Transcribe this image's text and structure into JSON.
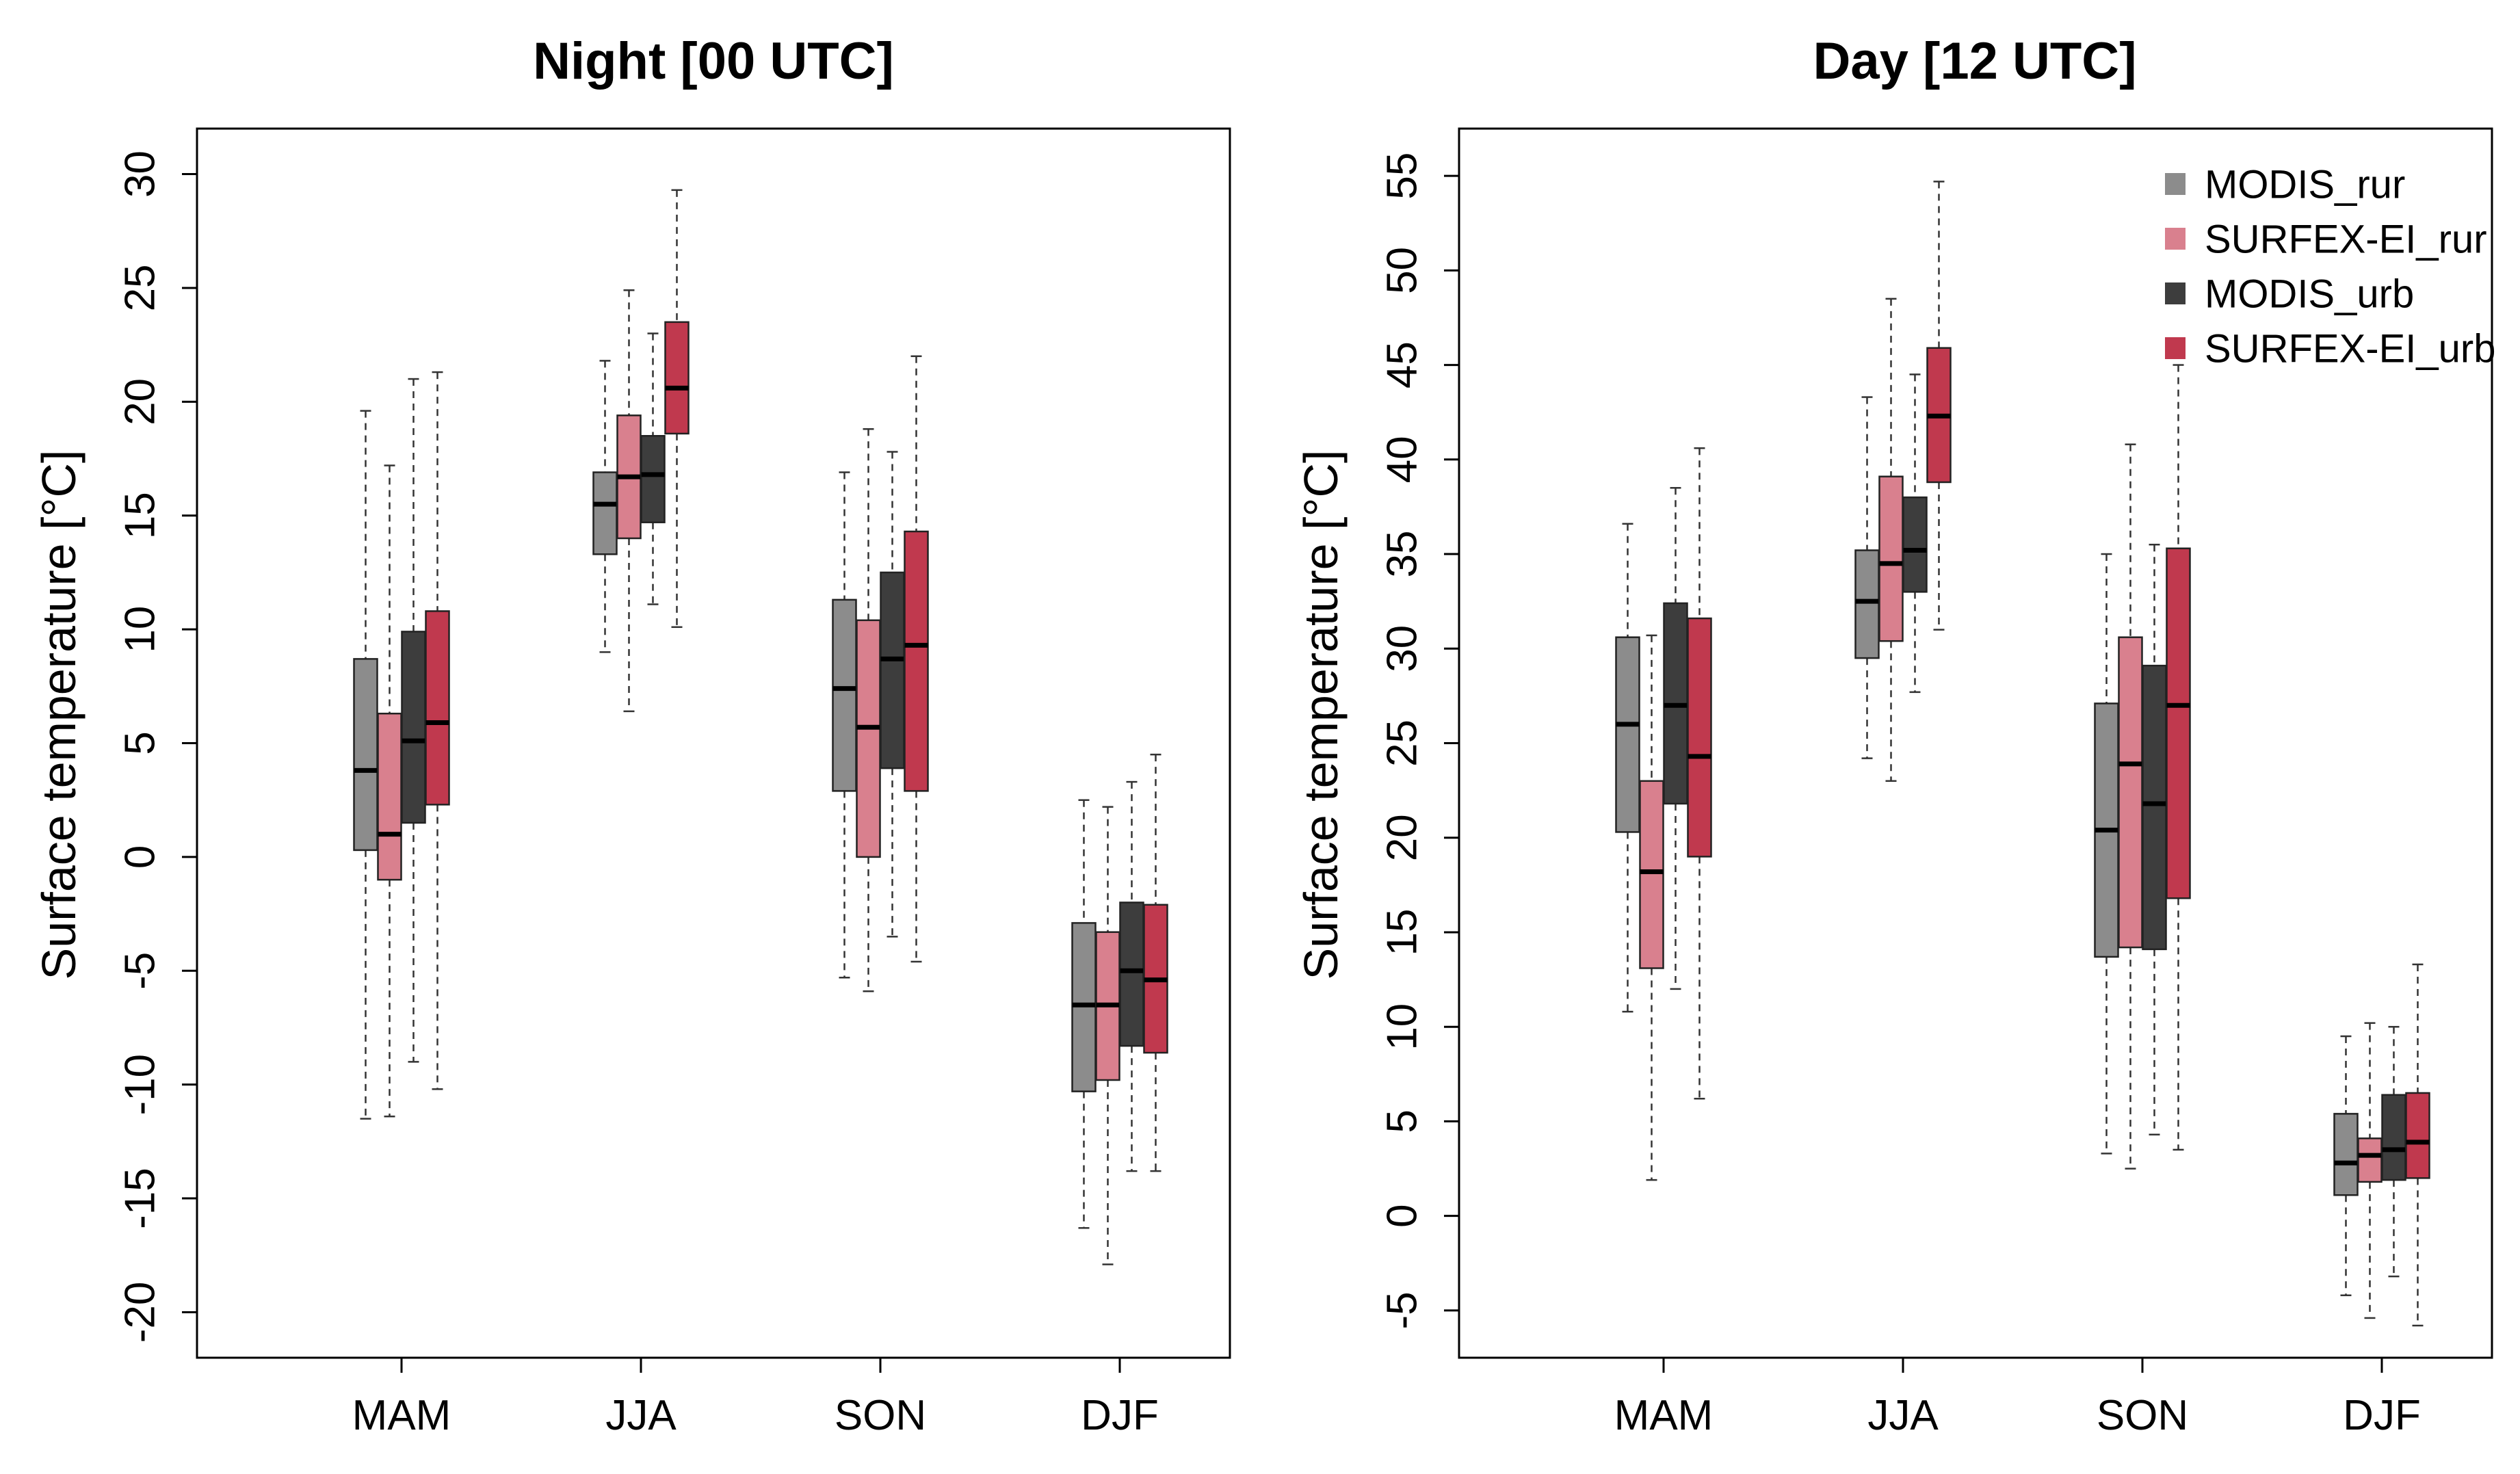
{
  "chart_data": [
    {
      "type": "boxplot",
      "title": "Night [00 UTC]",
      "xlabel": "",
      "ylabel": "Surface temperature [°C]",
      "ylim": [
        -22,
        32
      ],
      "yticks": [
        -20,
        -15,
        -10,
        -5,
        0,
        5,
        10,
        15,
        20,
        25,
        30
      ],
      "categories": [
        "MAM",
        "JJA",
        "SON",
        "DJF"
      ],
      "series": [
        {
          "name": "MODIS_rur",
          "color": "#8c8c8c",
          "boxes": [
            {
              "min": -11.5,
              "q1": 0.3,
              "median": 3.8,
              "q3": 8.7,
              "max": 19.6
            },
            {
              "min": 9.0,
              "q1": 13.3,
              "median": 15.5,
              "q3": 16.9,
              "max": 21.8
            },
            {
              "min": -5.3,
              "q1": 2.9,
              "median": 7.4,
              "q3": 11.3,
              "max": 16.9
            },
            {
              "min": -16.3,
              "q1": -10.3,
              "median": -6.5,
              "q3": -2.9,
              "max": 2.5
            }
          ]
        },
        {
          "name": "SURFEX-EI_rur",
          "color": "#d9808e",
          "boxes": [
            {
              "min": -11.4,
              "q1": -1.0,
              "median": 1.0,
              "q3": 6.3,
              "max": 17.2
            },
            {
              "min": 6.4,
              "q1": 14.0,
              "median": 16.7,
              "q3": 19.4,
              "max": 24.9
            },
            {
              "min": -5.9,
              "q1": 0.0,
              "median": 5.7,
              "q3": 10.4,
              "max": 18.8
            },
            {
              "min": -17.9,
              "q1": -9.8,
              "median": -6.5,
              "q3": -3.3,
              "max": 2.2
            }
          ]
        },
        {
          "name": "MODIS_urb",
          "color": "#3d3d3d",
          "boxes": [
            {
              "min": -9.0,
              "q1": 1.5,
              "median": 5.1,
              "q3": 9.9,
              "max": 21.0
            },
            {
              "min": 11.1,
              "q1": 14.7,
              "median": 16.8,
              "q3": 18.5,
              "max": 23.0
            },
            {
              "min": -3.5,
              "q1": 3.9,
              "median": 8.7,
              "q3": 12.5,
              "max": 17.8
            },
            {
              "min": -13.8,
              "q1": -8.3,
              "median": -5.0,
              "q3": -2.0,
              "max": 3.3
            }
          ]
        },
        {
          "name": "SURFEX-EI_urb",
          "color": "#c0394e",
          "boxes": [
            {
              "min": -10.2,
              "q1": 2.3,
              "median": 5.9,
              "q3": 10.8,
              "max": 21.3
            },
            {
              "min": 10.1,
              "q1": 18.6,
              "median": 20.6,
              "q3": 23.5,
              "max": 29.3
            },
            {
              "min": -4.6,
              "q1": 2.9,
              "median": 9.3,
              "q3": 14.3,
              "max": 22.0
            },
            {
              "min": -13.8,
              "q1": -8.6,
              "median": -5.4,
              "q3": -2.1,
              "max": 4.5
            }
          ]
        }
      ]
    },
    {
      "type": "boxplot",
      "title": "Day [12 UTC]",
      "xlabel": "",
      "ylabel": "Surface temperature [°C]",
      "ylim": [
        -7.5,
        57.5
      ],
      "yticks": [
        -5,
        0,
        5,
        10,
        15,
        20,
        25,
        30,
        35,
        40,
        45,
        50,
        55
      ],
      "categories": [
        "MAM",
        "JJA",
        "SON",
        "DJF"
      ],
      "legend": {
        "position": "top-right",
        "entries": [
          "MODIS_rur",
          "SURFEX-EI_rur",
          "MODIS_urb",
          "SURFEX-EI_urb"
        ]
      },
      "series": [
        {
          "name": "MODIS_rur",
          "color": "#8c8c8c",
          "boxes": [
            {
              "min": 10.8,
              "q1": 20.3,
              "median": 26.0,
              "q3": 30.6,
              "max": 36.6
            },
            {
              "min": 24.2,
              "q1": 29.5,
              "median": 32.5,
              "q3": 35.2,
              "max": 43.3
            },
            {
              "min": 3.3,
              "q1": 13.7,
              "median": 20.4,
              "q3": 27.1,
              "max": 35.0
            },
            {
              "min": -4.2,
              "q1": 1.1,
              "median": 2.8,
              "q3": 5.4,
              "max": 9.5
            }
          ]
        },
        {
          "name": "SURFEX-EI_rur",
          "color": "#d9808e",
          "boxes": [
            {
              "min": 1.9,
              "q1": 13.1,
              "median": 18.2,
              "q3": 23.0,
              "max": 30.7
            },
            {
              "min": 23.0,
              "q1": 30.4,
              "median": 34.5,
              "q3": 39.1,
              "max": 48.5
            },
            {
              "min": 2.5,
              "q1": 14.2,
              "median": 23.9,
              "q3": 30.6,
              "max": 40.8
            },
            {
              "min": -5.4,
              "q1": 1.8,
              "median": 3.2,
              "q3": 4.1,
              "max": 10.2
            }
          ]
        },
        {
          "name": "MODIS_urb",
          "color": "#3d3d3d",
          "boxes": [
            {
              "min": 12.0,
              "q1": 21.8,
              "median": 27.0,
              "q3": 32.4,
              "max": 38.5
            },
            {
              "min": 27.7,
              "q1": 33.0,
              "median": 35.2,
              "q3": 38.0,
              "max": 44.5
            },
            {
              "min": 4.3,
              "q1": 14.1,
              "median": 21.8,
              "q3": 29.1,
              "max": 35.5
            },
            {
              "min": -3.2,
              "q1": 1.9,
              "median": 3.5,
              "q3": 6.4,
              "max": 10.0
            }
          ]
        },
        {
          "name": "SURFEX-EI_urb",
          "color": "#c0394e",
          "boxes": [
            {
              "min": 6.2,
              "q1": 19.0,
              "median": 24.3,
              "q3": 31.6,
              "max": 40.6
            },
            {
              "min": 31.0,
              "q1": 38.8,
              "median": 42.3,
              "q3": 45.9,
              "max": 54.7
            },
            {
              "min": 3.5,
              "q1": 16.8,
              "median": 27.0,
              "q3": 35.3,
              "max": 45.0
            },
            {
              "min": -5.8,
              "q1": 2.0,
              "median": 3.9,
              "q3": 6.5,
              "max": 13.3
            }
          ]
        }
      ]
    }
  ]
}
